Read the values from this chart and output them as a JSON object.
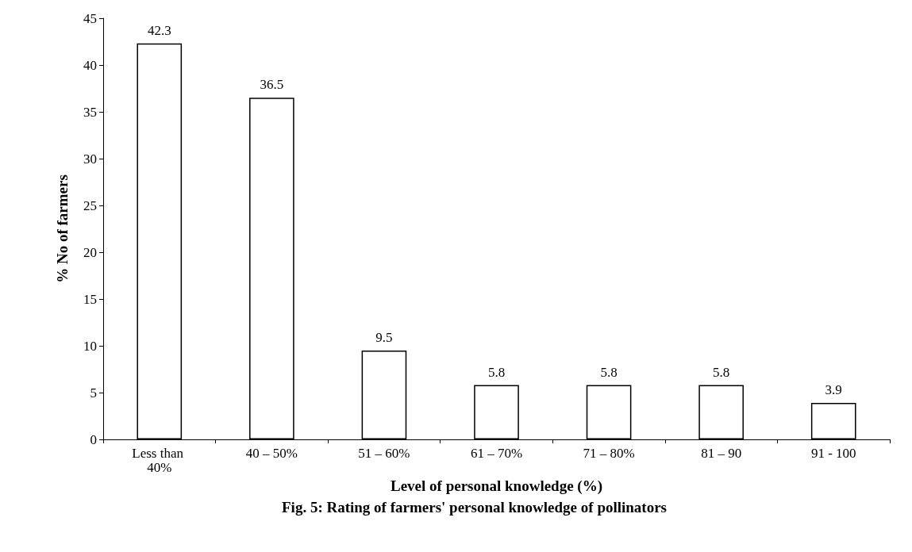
{
  "chart_data": {
    "type": "bar",
    "xlabel": "Level of personal knowledge (%)",
    "ylabel": "% No of farmers",
    "categories": [
      "Less than 40%",
      "40 – 50%",
      "51 – 60%",
      "61 – 70%",
      "71 – 80%",
      "81 – 90",
      "91 - 100"
    ],
    "values": [
      42.3,
      36.5,
      9.5,
      5.8,
      5.8,
      5.8,
      3.9
    ],
    "color": "#ffffff",
    "ylim": [
      0,
      45
    ],
    "yticks": [
      0,
      5,
      10,
      15,
      20,
      25,
      30,
      35,
      40,
      45
    ],
    "data_labels": true,
    "grid": false,
    "annotations": [
      "Fig. 5: Rating of farmers' personal knowledge of pollinators"
    ]
  }
}
